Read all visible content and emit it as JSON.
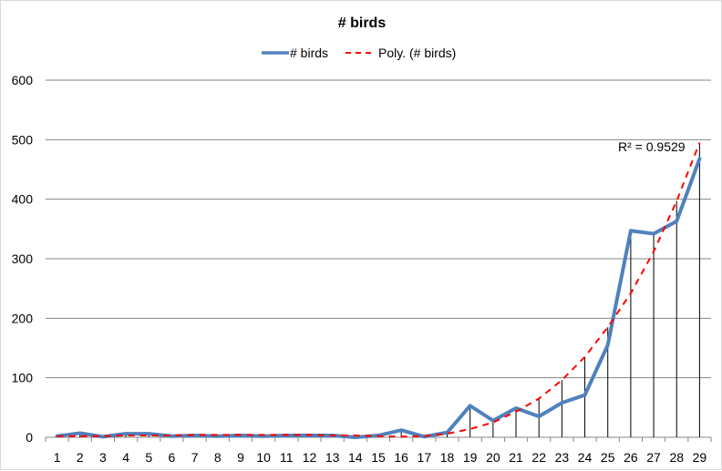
{
  "chart_data": {
    "type": "line",
    "title": "# birds",
    "xlabel": "",
    "ylabel": "",
    "categories": [
      "1",
      "2",
      "3",
      "4",
      "5",
      "6",
      "7",
      "8",
      "9",
      "10",
      "11",
      "12",
      "13",
      "14",
      "15",
      "16",
      "17",
      "18",
      "19",
      "20",
      "21",
      "22",
      "23",
      "24",
      "25",
      "26",
      "27",
      "28",
      "29"
    ],
    "ylim": [
      0,
      600
    ],
    "yticks": [
      0,
      100,
      200,
      300,
      400,
      500,
      600
    ],
    "grid": true,
    "drop_lines": true,
    "legend_position": "top",
    "series": [
      {
        "name": "# birds",
        "style": "solid",
        "color": "#4f81bd",
        "values": [
          2,
          7,
          1,
          6,
          6,
          2,
          3,
          2,
          3,
          2,
          3,
          3,
          3,
          0,
          3,
          12,
          1,
          8,
          53,
          28,
          49,
          35,
          58,
          71,
          155,
          347,
          342,
          363,
          468
        ]
      },
      {
        "name": "Poly. (# birds)",
        "style": "dashed",
        "color": "#ff0000",
        "values": [
          2,
          2,
          2,
          3,
          3,
          3,
          4,
          4,
          4,
          4,
          4,
          4,
          3,
          3,
          2,
          1,
          2,
          6,
          14,
          25,
          43,
          65,
          96,
          135,
          185,
          242,
          312,
          397,
          495
        ]
      }
    ],
    "annotations": [
      {
        "text": "R² = 0.9529"
      }
    ]
  }
}
